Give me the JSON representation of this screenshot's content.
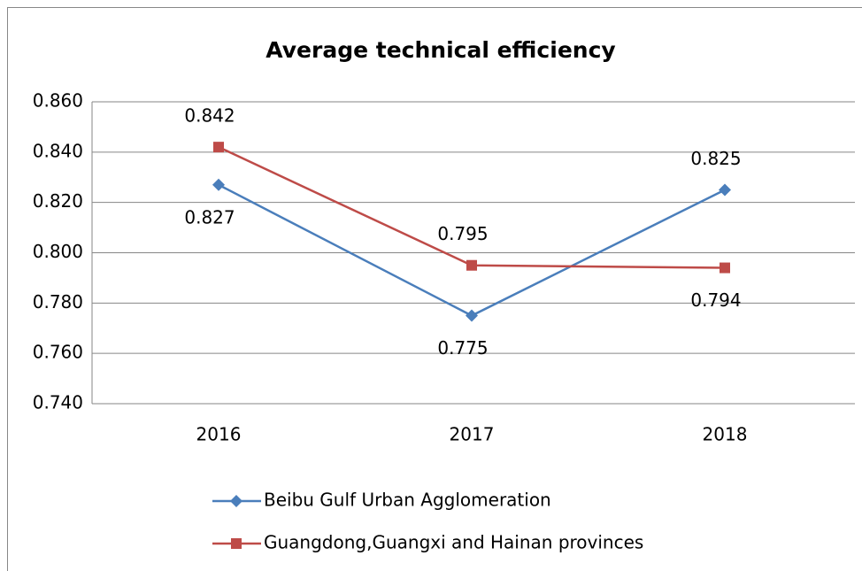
{
  "chart_data": {
    "type": "line",
    "title": "Average technical efficiency",
    "categories": [
      "2016",
      "2017",
      "2018"
    ],
    "series": [
      {
        "name": "Beibu Gulf Urban Agglomeration",
        "color": "#4a7ebb",
        "marker": "diamond",
        "values": [
          0.827,
          0.775,
          0.825
        ]
      },
      {
        "name": "Guangdong,Guangxi and Hainan provinces",
        "color": "#be4b48",
        "marker": "square",
        "values": [
          0.842,
          0.795,
          0.794
        ]
      }
    ],
    "ylim": [
      0.74,
      0.86
    ],
    "yticks": [
      {
        "value": 0.74,
        "label": "0.740"
      },
      {
        "value": 0.76,
        "label": "0.760"
      },
      {
        "value": 0.78,
        "label": "0.780"
      },
      {
        "value": 0.8,
        "label": "0.800"
      },
      {
        "value": 0.82,
        "label": "0.820"
      },
      {
        "value": 0.84,
        "label": "0.840"
      },
      {
        "value": 0.86,
        "label": "0.860"
      }
    ],
    "grid": true,
    "legend": "bottom"
  }
}
